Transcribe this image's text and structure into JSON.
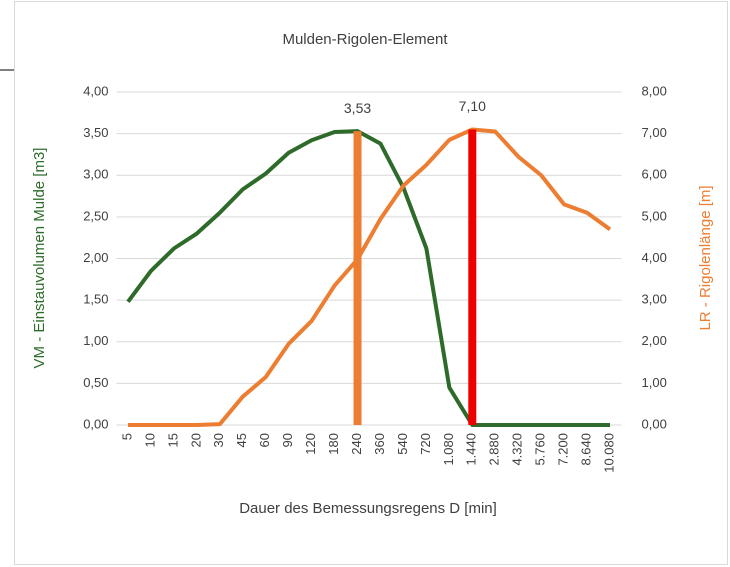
{
  "chart_data": {
    "type": "line",
    "title": "Mulden-Rigolen-Element",
    "xlabel": "Dauer des Bemessungsregens  D [min]",
    "ylabel": "VM - Einstauvolumen Mulde [m3]",
    "y2label": "LR - Rigolenlänge [m]",
    "categories": [
      "5",
      "10",
      "15",
      "20",
      "30",
      "45",
      "60",
      "90",
      "120",
      "180",
      "240",
      "360",
      "540",
      "720",
      "1.080",
      "1.440",
      "2.880",
      "4.320",
      "5.760",
      "7.200",
      "8.640",
      "10.080"
    ],
    "ylim": [
      0,
      4
    ],
    "yticks": [
      {
        "value": 0,
        "label": "0,00"
      },
      {
        "value": 0.5,
        "label": "0,50"
      },
      {
        "value": 1,
        "label": "1,00"
      },
      {
        "value": 1.5,
        "label": "1,50"
      },
      {
        "value": 2,
        "label": "2,00"
      },
      {
        "value": 2.5,
        "label": "2,50"
      },
      {
        "value": 3,
        "label": "3,00"
      },
      {
        "value": 3.5,
        "label": "3,50"
      },
      {
        "value": 4,
        "label": "4,00"
      }
    ],
    "y2lim": [
      0,
      8
    ],
    "y2ticks": [
      {
        "value": 0,
        "label": "0,00"
      },
      {
        "value": 1,
        "label": "1,00"
      },
      {
        "value": 2,
        "label": "2,00"
      },
      {
        "value": 3,
        "label": "3,00"
      },
      {
        "value": 4,
        "label": "4,00"
      },
      {
        "value": 5,
        "label": "5,00"
      },
      {
        "value": 6,
        "label": "6,00"
      },
      {
        "value": 7,
        "label": "7,00"
      },
      {
        "value": 8,
        "label": "8,00"
      }
    ],
    "grid": true,
    "series": [
      {
        "kind": "line",
        "color": "#2e6b2a",
        "values": [
          1.48,
          1.85,
          2.12,
          2.3,
          2.55,
          2.83,
          3.02,
          3.27,
          3.42,
          3.52,
          3.53,
          3.38,
          2.85,
          2.12,
          0.45,
          0,
          0,
          0,
          0,
          0,
          0,
          0
        ]
      },
      {
        "kind": "line",
        "axis": "y2",
        "color": "#ed7d31",
        "values": [
          0,
          0,
          0,
          0,
          0.02,
          0.68,
          1.15,
          1.95,
          2.5,
          3.35,
          3.98,
          4.95,
          5.75,
          6.25,
          6.85,
          7.1,
          7.05,
          6.45,
          6.0,
          5.3,
          5.1,
          4.7
        ]
      },
      {
        "kind": "bar",
        "color": "#ed7d31",
        "values": [
          null,
          null,
          null,
          null,
          null,
          null,
          null,
          null,
          null,
          null,
          3.53,
          null,
          null,
          null,
          null,
          null,
          null,
          null,
          null,
          null,
          null,
          null
        ],
        "value_labels": [
          null,
          null,
          null,
          null,
          null,
          null,
          null,
          null,
          null,
          null,
          "3,53",
          null,
          null,
          null,
          null,
          null,
          null,
          null,
          null,
          null,
          null,
          null
        ]
      },
      {
        "kind": "bar",
        "axis": "y2",
        "color": "#ee0000",
        "values": [
          null,
          null,
          null,
          null,
          null,
          null,
          null,
          null,
          null,
          null,
          null,
          null,
          null,
          null,
          null,
          7.1,
          null,
          null,
          null,
          null,
          null,
          null
        ],
        "value_labels": [
          null,
          null,
          null,
          null,
          null,
          null,
          null,
          null,
          null,
          null,
          null,
          null,
          null,
          null,
          null,
          "7,10",
          null,
          null,
          null,
          null,
          null,
          null
        ]
      }
    ]
  }
}
